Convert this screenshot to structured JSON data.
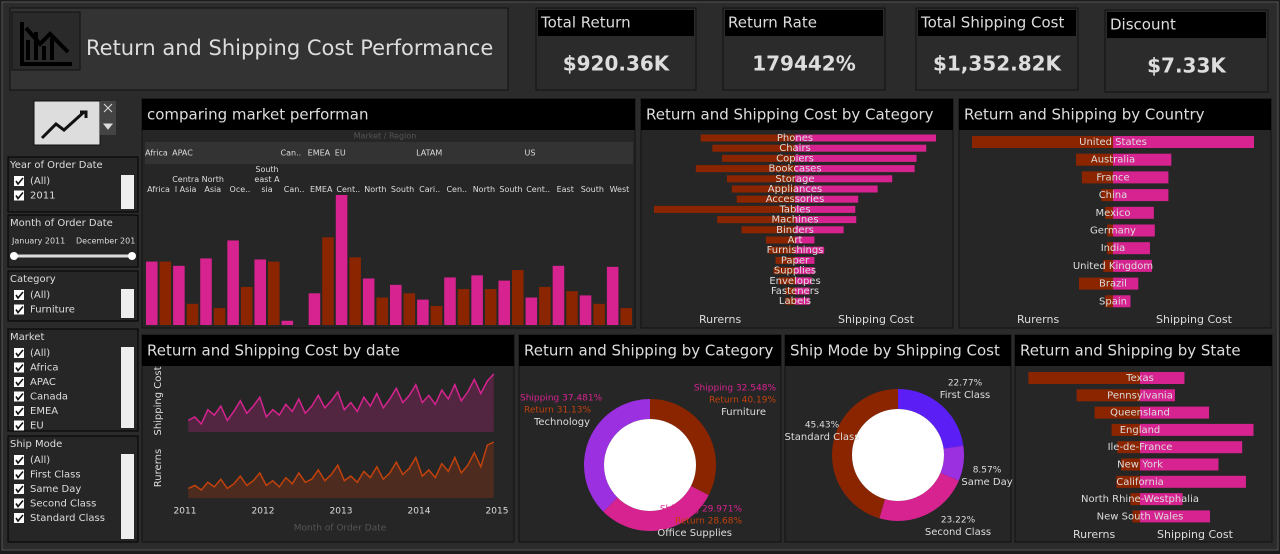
{
  "header": {
    "title": "Return and Shipping Cost Performance"
  },
  "kpis": [
    {
      "label": "Total Return",
      "value": "$920.36K"
    },
    {
      "label": "Return Rate",
      "value": "179442%"
    },
    {
      "label": "Total Shipping Cost",
      "value": "$1,352.82K"
    },
    {
      "label": "Discount",
      "value": "$7.33K"
    }
  ],
  "filters": [
    {
      "title": "Year of Order Date",
      "items": [
        "(All)",
        "2011"
      ]
    },
    {
      "title": "Month of Order Date",
      "range": [
        "January 2011",
        "December 201"
      ]
    },
    {
      "title": "Category",
      "items": [
        "(All)",
        "Furniture"
      ]
    },
    {
      "title": "Market",
      "items": [
        "(All)",
        "Africa",
        "APAC",
        "Canada",
        "EMEA",
        "EU"
      ]
    },
    {
      "title": "Ship Mode",
      "items": [
        "(All)",
        "First Class",
        "Same Day",
        "Second Class",
        "Standard Class"
      ]
    }
  ],
  "market_chart": {
    "type": "bar",
    "title": "comparing market performan",
    "header": "Market / Region",
    "colors": {
      "shipping": "#d6238f",
      "return": "#8b2500"
    },
    "markets": [
      {
        "name": "Africa",
        "regions": [
          {
            "name": "Africa",
            "shipping": 60,
            "return": 60
          }
        ]
      },
      {
        "name": "APAC",
        "regions": [
          {
            "name": "Central Asia",
            "shipping": 56,
            "return": 20
          },
          {
            "name": "North Asia",
            "shipping": 63,
            "return": 16
          },
          {
            "name": "Oce..",
            "shipping": 80,
            "return": 36
          },
          {
            "name": "Southeast Asia",
            "shipping": 62,
            "return": 60
          }
        ]
      },
      {
        "name": "Can..",
        "regions": [
          {
            "name": "Can..",
            "shipping": 4,
            "return": 0
          }
        ]
      },
      {
        "name": "EMEA",
        "regions": [
          {
            "name": "EMEA",
            "shipping": 30,
            "return": 83
          }
        ]
      },
      {
        "name": "EU",
        "regions": [
          {
            "name": "Cent..",
            "shipping": 123,
            "return": 64
          },
          {
            "name": "North",
            "shipping": 44,
            "return": 26
          },
          {
            "name": "South",
            "shipping": 38,
            "return": 30
          }
        ]
      },
      {
        "name": "LATAM",
        "regions": [
          {
            "name": "Cari..",
            "shipping": 24,
            "return": 18
          },
          {
            "name": "Cen..",
            "shipping": 45,
            "return": 34
          },
          {
            "name": "North",
            "shipping": 47,
            "return": 34
          },
          {
            "name": "South",
            "shipping": 42,
            "return": 52
          }
        ]
      },
      {
        "name": "US",
        "regions": [
          {
            "name": "Cent..",
            "shipping": 26,
            "return": 36
          },
          {
            "name": "East",
            "shipping": 56,
            "return": 32
          },
          {
            "name": "South",
            "shipping": 28,
            "return": 20
          },
          {
            "name": "West",
            "shipping": 55,
            "return": 16
          }
        ]
      }
    ]
  },
  "category_chart": {
    "type": "bar",
    "title": "Return and Shipping Cost by Category",
    "legend": [
      "Rurerns",
      "Shipping Cost"
    ],
    "categories": [
      "Phones",
      "Chairs",
      "Copiers",
      "Bookcases",
      "Storage",
      "Appliances",
      "Accessories",
      "Tables",
      "Machines",
      "Binders",
      "Art",
      "Furnishings",
      "Paper",
      "Supplies",
      "Envelopes",
      "Fasteners",
      "Labels"
    ],
    "series": [
      {
        "name": "Rurerns",
        "color": "#8b2500",
        "values": [
          97,
          85,
          75,
          102,
          70,
          65,
          60,
          145,
          80,
          55,
          30,
          27,
          20,
          22,
          17,
          10,
          10
        ]
      },
      {
        "name": "Shipping Cost",
        "color": "#d6238f",
        "values": [
          145,
          135,
          125,
          123,
          100,
          85,
          65,
          62,
          63,
          50,
          20,
          30,
          20,
          20,
          17,
          15,
          15
        ]
      }
    ]
  },
  "country_chart": {
    "type": "bar",
    "title": "Return and Shipping by Country",
    "legend": [
      "Rurerns",
      "Shipping Cost"
    ],
    "categories": [
      "United States",
      "Australia",
      "France",
      "China",
      "Mexico",
      "Germany",
      "India",
      "United Kingdom",
      "Brazil",
      "Spain"
    ],
    "series": [
      {
        "name": "Rurerns",
        "color": "#8b2500",
        "values": [
          145,
          38,
          32,
          12,
          8,
          6,
          6,
          10,
          35,
          8
        ]
      },
      {
        "name": "Shipping Cost",
        "color": "#d6238f",
        "values": [
          145,
          60,
          57,
          57,
          42,
          43,
          38,
          40,
          26,
          18
        ]
      }
    ]
  },
  "date_chart": {
    "type": "line",
    "title": "Return and Shipping Cost by date",
    "x_label": "Month of Order Date",
    "xlim": [
      2011,
      2015
    ],
    "xticks": [
      2011,
      2012,
      2013,
      2014,
      2015
    ],
    "series": [
      {
        "name": "Shipping Cost",
        "color": "#d6238f",
        "values": [
          22,
          24,
          20,
          28,
          25,
          30,
          22,
          27,
          33,
          26,
          30,
          35,
          24,
          28,
          25,
          31,
          27,
          34,
          26,
          30,
          36,
          29,
          33,
          38,
          28,
          32,
          27,
          35,
          30,
          37,
          29,
          34,
          40,
          32,
          36,
          42,
          32,
          36,
          31,
          39,
          34,
          42,
          33,
          38,
          45,
          37,
          44,
          48
        ]
      },
      {
        "name": "Rurerns",
        "color": "#c2410c",
        "values": [
          10,
          12,
          9,
          14,
          11,
          16,
          10,
          13,
          18,
          12,
          15,
          20,
          12,
          15,
          11,
          17,
          13,
          20,
          14,
          16,
          22,
          15,
          19,
          25,
          15,
          18,
          14,
          21,
          17,
          24,
          16,
          20,
          27,
          19,
          23,
          30,
          18,
          22,
          17,
          26,
          21,
          30,
          20,
          25,
          33,
          24,
          38,
          40
        ]
      }
    ]
  },
  "category_donut": {
    "type": "pie",
    "title": "Return and Shipping by Category",
    "categories": [
      "Furniture",
      "Office Supplies",
      "Technology"
    ],
    "colors": [
      "#8b2500",
      "#d6238f",
      "#9b30e0"
    ],
    "shipping": [
      32.548,
      29.971,
      37.481
    ],
    "shipping_labels": [
      "Shipping 32.548%",
      "Shipping 29.971%",
      "Shipping 37.481%"
    ],
    "return": [
      40.19,
      28.68,
      31.13
    ],
    "return_labels": [
      "Return 40.19%",
      "Return 28.68%",
      "Return 31.13%"
    ]
  },
  "shipmode_donut": {
    "type": "pie",
    "title": "Ship Mode  by Shipping Cost",
    "categories": [
      "First Class",
      "Same Day",
      "Second Class",
      "Standard Class"
    ],
    "colors": [
      "#5b1ff5",
      "#9b30e0",
      "#d6238f",
      "#8b2500"
    ],
    "values": [
      22.77,
      8.57,
      23.22,
      45.43
    ],
    "value_labels": [
      "22.77%",
      "8.57%",
      "23.22%",
      "45.43%"
    ]
  },
  "state_chart": {
    "type": "bar",
    "title": "Return and Shipping by State",
    "legend": [
      "Rurerns",
      "Shipping Cost"
    ],
    "categories": [
      "Texas",
      "Pennsylvania",
      "Queensland",
      "England",
      "Ile-de-France",
      "New York",
      "California",
      "North Rhine-Westphalia",
      "New South Wales"
    ],
    "series": [
      {
        "name": "Rurerns",
        "color": "#8b2500",
        "values": [
          118,
          67,
          48,
          30,
          24,
          20,
          25,
          10,
          8
        ]
      },
      {
        "name": "Shipping Cost",
        "color": "#d6238f",
        "values": [
          47,
          37,
          73,
          120,
          108,
          83,
          112,
          45,
          74
        ]
      }
    ]
  }
}
